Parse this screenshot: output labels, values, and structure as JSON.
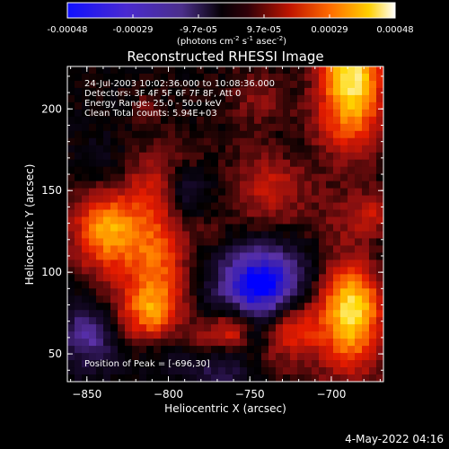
{
  "colorbar": {
    "ticks": [
      "-0.00048",
      "-0.00029",
      "-9.7e-05",
      "9.7e-05",
      "0.00029",
      "0.00048"
    ],
    "unit_main": "(photons cm",
    "unit_sup1": "-2",
    "unit_mid": " s",
    "unit_sup2": "-1",
    "unit_tail": " asec",
    "unit_sup3": "-2",
    "unit_close": ")"
  },
  "chart_data": {
    "type": "heatmap",
    "title": "Reconstructed RHESSI Image",
    "xlabel": "Heliocentric X (arcsec)",
    "ylabel": "Heliocentric Y (arcsec)",
    "xlim": [
      -862,
      -668
    ],
    "ylim": [
      33,
      226
    ],
    "xticks": [
      -850,
      -800,
      -750,
      -700
    ],
    "yticks": [
      50,
      100,
      150,
      200
    ],
    "value_range": [
      -0.00048,
      0.00048
    ],
    "colormap": [
      "#0000ff",
      "#3a1fb4",
      "#5a31a6",
      "#1a0a30",
      "#000000",
      "#8a0f10",
      "#e31b00",
      "#ff7a00",
      "#ffd800",
      "#ffffff"
    ],
    "annotations": [
      "24-Jul-2003 10:02:36.000 to 10:08:36.000",
      "Detectors: 3F 4F 5F 6F 7F 8F, Att 0",
      "Energy Range: 25.0 - 50.0 keV",
      "Clean     Total counts: 5.94E+03"
    ],
    "peak_label": "Position of Peak = [-696,30]",
    "peak_position": [
      -696,
      30
    ]
  },
  "footer": "4-May-2022 04:16"
}
